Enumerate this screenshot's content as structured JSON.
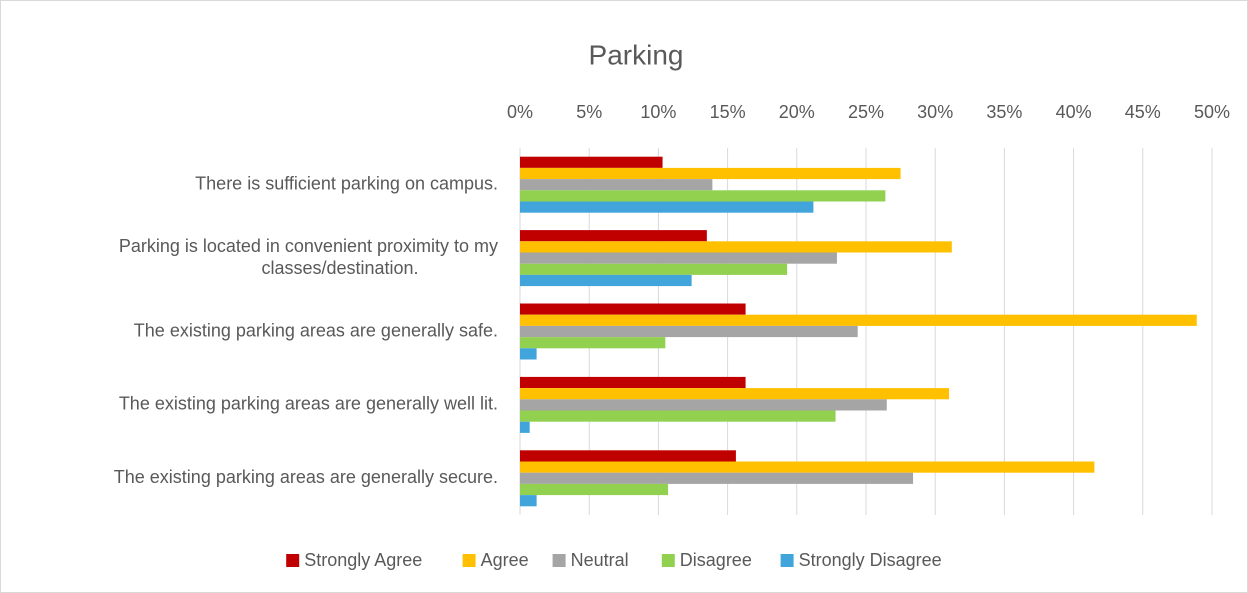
{
  "chart_data": {
    "type": "hbar",
    "title": "Parking",
    "categories": [
      "There is sufficient parking on campus.",
      "Parking is located in convenient proximity to my classes/destination.",
      "The existing parking areas are generally safe.",
      "The existing parking areas are generally well lit.",
      "The existing parking areas are generally secure."
    ],
    "series": [
      {
        "name": "Strongly Agree",
        "color": "#c00000",
        "values": [
          10.3,
          13.5,
          16.3,
          16.3,
          15.6
        ]
      },
      {
        "name": "Agree",
        "color": "#ffc000",
        "values": [
          27.5,
          31.2,
          48.9,
          31.0,
          41.5
        ]
      },
      {
        "name": "Neutral",
        "color": "#a5a5a5",
        "values": [
          13.9,
          22.9,
          24.4,
          26.5,
          28.4
        ]
      },
      {
        "name": "Disagree",
        "color": "#92d050",
        "values": [
          26.4,
          19.3,
          10.5,
          22.8,
          10.7
        ]
      },
      {
        "name": "Strongly Disagree",
        "color": "#41a5dc",
        "values": [
          21.2,
          12.4,
          1.2,
          0.7,
          1.2
        ]
      }
    ],
    "xlim": [
      0,
      50
    ],
    "xticks": [
      {
        "value": 0,
        "label": "0%"
      },
      {
        "value": 5,
        "label": "5%"
      },
      {
        "value": 10,
        "label": "10%"
      },
      {
        "value": 15,
        "label": "15%"
      },
      {
        "value": 20,
        "label": "20%"
      },
      {
        "value": 25,
        "label": "25%"
      },
      {
        "value": 30,
        "label": "30%"
      },
      {
        "value": 35,
        "label": "35%"
      },
      {
        "value": 40,
        "label": "40%"
      },
      {
        "value": 45,
        "label": "45%"
      },
      {
        "value": 50,
        "label": "50%"
      }
    ],
    "grid": true,
    "legend": "bottom"
  }
}
